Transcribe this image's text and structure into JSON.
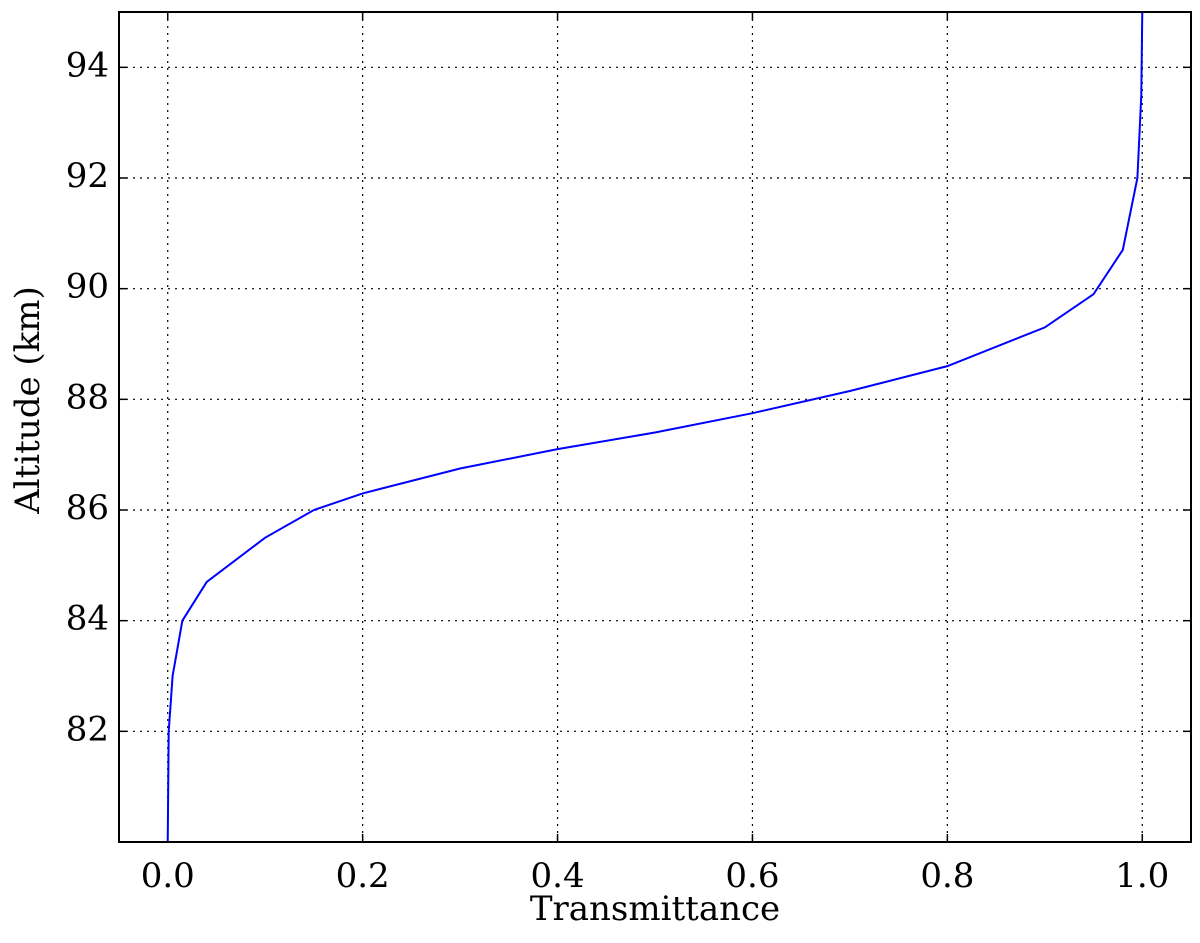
{
  "chart_data": {
    "type": "line",
    "xlabel": "Transmittance",
    "ylabel": "Altitude (km)",
    "series": [
      {
        "color": "#0000ff",
        "x": [
          0,
          0.001,
          0.005,
          0.015,
          0.04,
          0.1,
          0.15,
          0.2,
          0.3,
          0.4,
          0.5,
          0.6,
          0.7,
          0.8,
          0.9,
          0.95,
          0.98,
          0.995,
          0.999,
          1.0
        ],
        "values": [
          80,
          82,
          83,
          84,
          84.7,
          85.5,
          86,
          86.3,
          86.75,
          87.1,
          87.4,
          87.75,
          88.15,
          88.6,
          89.3,
          89.9,
          90.7,
          92,
          93.5,
          95
        ]
      }
    ],
    "xlim": [
      -0.05,
      1.05
    ],
    "xticks": [
      {
        "value": 0,
        "label": "0.0"
      },
      0.2,
      0.4,
      0.6,
      0.8,
      {
        "value": 1,
        "label": "1.0"
      }
    ],
    "ylim": [
      80,
      95
    ],
    "yticks": [
      82,
      84,
      86,
      88,
      90,
      92,
      94
    ],
    "grid": true
  }
}
